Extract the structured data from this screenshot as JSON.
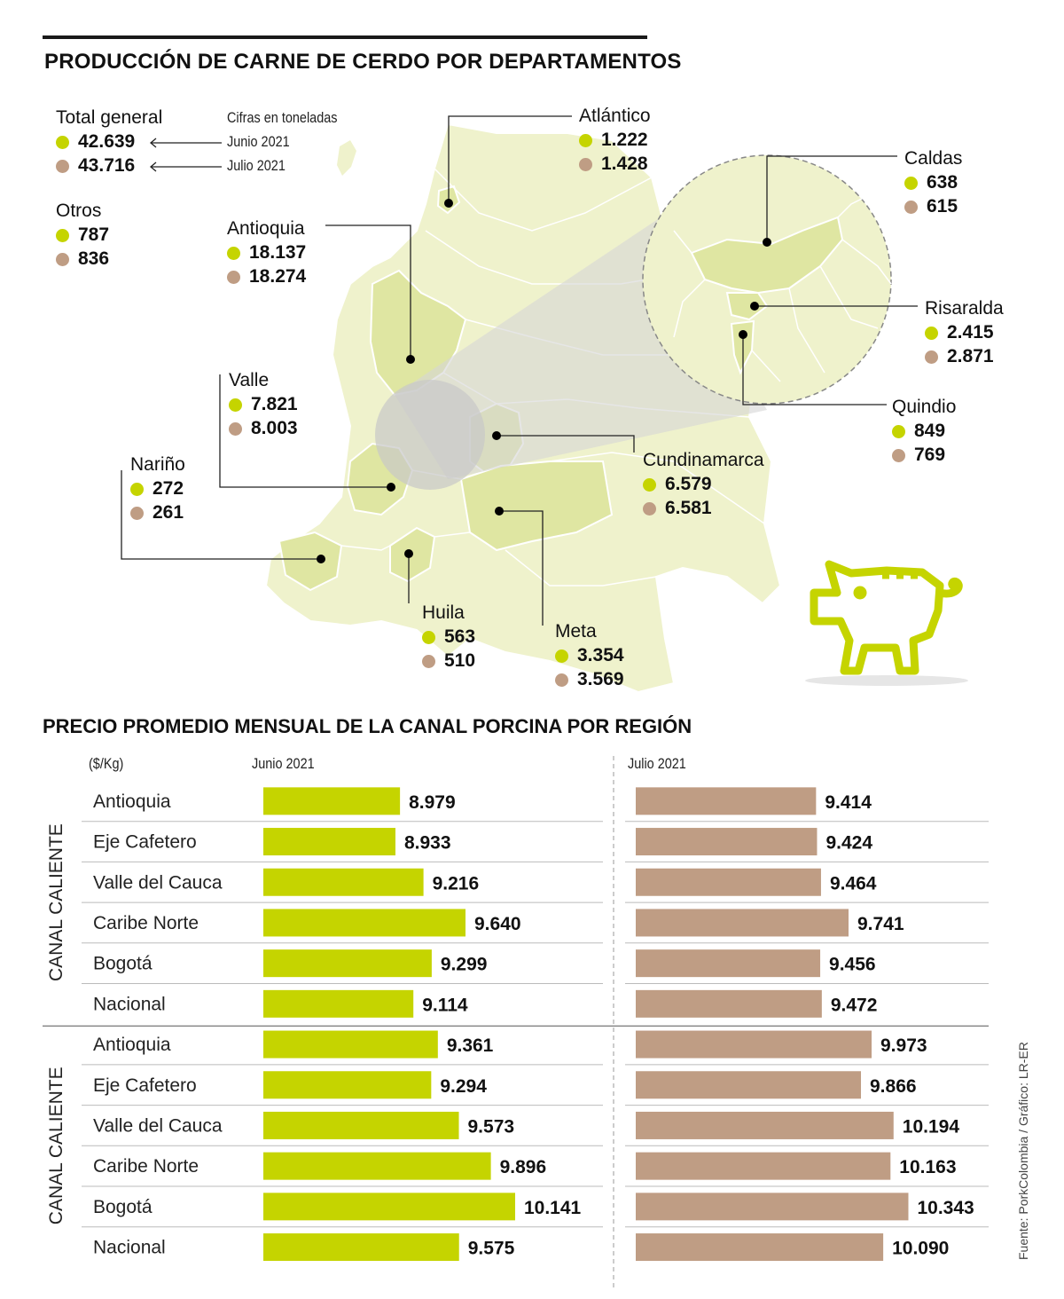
{
  "title": "PRODUCCIÓN DE CARNE DE CERDO POR DEPARTAMENTOS",
  "subtitle": "PRECIO PROMEDIO MENSUAL DE LA CANAL PORCINA POR REGIÓN",
  "source": "Fuente: PorkColombia / Gráfico: LR-ER",
  "colors": {
    "june": "#c5d400",
    "july": "#bf9d84",
    "map_fill": "#eff2cc",
    "map_highlight": "#dfe6a2",
    "map_stroke": "#ffffff"
  },
  "units_note": "Cifras en toneladas",
  "june_label": "Junio 2021",
  "july_label": "Julio 2021",
  "totals": {
    "label": "Total general",
    "june": "42.639",
    "july": "43.716"
  },
  "otros": {
    "label": "Otros",
    "june": "787",
    "july": "836"
  },
  "departments": [
    {
      "name": "Atlántico",
      "june": "1.222",
      "july": "1.428"
    },
    {
      "name": "Caldas",
      "june": "638",
      "july": "615"
    },
    {
      "name": "Antioquia",
      "june": "18.137",
      "july": "18.274"
    },
    {
      "name": "Risaralda",
      "june": "2.415",
      "july": "2.871"
    },
    {
      "name": "Valle",
      "june": "7.821",
      "july": "8.003"
    },
    {
      "name": "Quindio",
      "june": "849",
      "july": "769"
    },
    {
      "name": "Cundinamarca",
      "june": "6.579",
      "july": "6.581"
    },
    {
      "name": "Nariño",
      "june": "272",
      "july": "261"
    },
    {
      "name": "Huila",
      "june": "563",
      "july": "510"
    },
    {
      "name": "Meta",
      "june": "3.354",
      "july": "3.569"
    }
  ],
  "icons": [
    "pig-icon"
  ],
  "chart_data": {
    "type": "bar",
    "title": "PRECIO PROMEDIO MENSUAL DE LA CANAL PORCINA POR REGIÓN",
    "unit_label": "($/Kg)",
    "period_labels": [
      "Junio 2021",
      "Julio 2021"
    ],
    "groups": [
      {
        "name": "CANAL CALIENTE",
        "categories": [
          "Antioquia",
          "Eje Cafetero",
          "Valle del Cauca",
          "Caribe Norte",
          "Bogotá",
          "Nacional"
        ],
        "series": [
          {
            "name": "Junio 2021",
            "values": [
              8979,
              8933,
              9216,
              9640,
              9299,
              9114
            ],
            "labels": [
              "8.979",
              "8.933",
              "9.216",
              "9.640",
              "9.299",
              "9.114"
            ]
          },
          {
            "name": "Julio 2021",
            "values": [
              9414,
              9424,
              9464,
              9741,
              9456,
              9472
            ],
            "labels": [
              "9.414",
              "9.424",
              "9.464",
              "9.741",
              "9.456",
              "9.472"
            ]
          }
        ]
      },
      {
        "name": "CANAL CALIENTE",
        "categories": [
          "Antioquia",
          "Eje Cafetero",
          "Valle del Cauca",
          "Caribe Norte",
          "Bogotá",
          "Nacional"
        ],
        "series": [
          {
            "name": "Junio 2021",
            "values": [
              9361,
              9294,
              9573,
              9896,
              10141,
              9575
            ],
            "labels": [
              "9.361",
              "9.294",
              "9.573",
              "9.896",
              "10.141",
              "9.575"
            ]
          },
          {
            "name": "Julio 2021",
            "values": [
              9973,
              9866,
              10194,
              10163,
              10343,
              10090
            ],
            "labels": [
              "9.973",
              "9.866",
              "10.194",
              "10.163",
              "10.343",
              "10.090"
            ]
          }
        ]
      }
    ]
  }
}
